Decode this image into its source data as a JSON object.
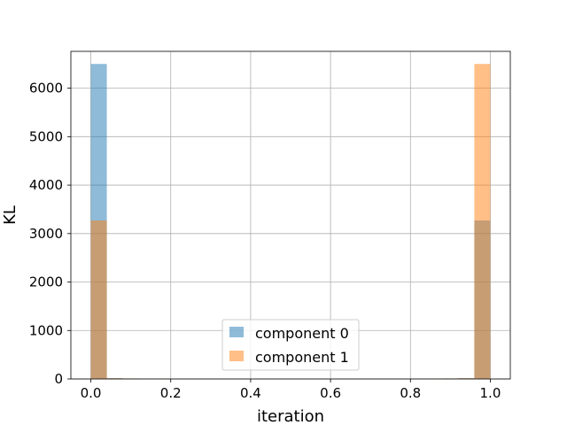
{
  "chart_data": {
    "type": "bar",
    "title": "",
    "xlabel": "iteration",
    "ylabel": "KL",
    "xlim": [
      -0.05,
      1.05
    ],
    "ylim": [
      0,
      6760
    ],
    "grid": true,
    "legend_position": "lower center",
    "x_ticks": [
      {
        "value": 0.0,
        "label": "0.0"
      },
      {
        "value": 0.2,
        "label": "0.2"
      },
      {
        "value": 0.4,
        "label": "0.4"
      },
      {
        "value": 0.6,
        "label": "0.6"
      },
      {
        "value": 0.8,
        "label": "0.8"
      },
      {
        "value": 1.0,
        "label": "1.0"
      }
    ],
    "y_ticks": [
      {
        "value": 0,
        "label": "0"
      },
      {
        "value": 1000,
        "label": "1000"
      },
      {
        "value": 2000,
        "label": "2000"
      },
      {
        "value": 3000,
        "label": "3000"
      },
      {
        "value": 4000,
        "label": "4000"
      },
      {
        "value": 5000,
        "label": "5000"
      },
      {
        "value": 6000,
        "label": "6000"
      }
    ],
    "bin_edges": [
      0.0,
      0.04,
      0.08,
      0.12,
      0.16,
      0.2,
      0.24,
      0.28,
      0.32,
      0.36,
      0.4,
      0.44,
      0.48,
      0.52,
      0.56,
      0.6,
      0.64,
      0.68,
      0.72,
      0.76,
      0.8,
      0.84,
      0.88,
      0.92,
      0.96,
      1.0
    ],
    "series": [
      {
        "name": "component 0",
        "color": "#1f77b4",
        "opacity": 0.5,
        "values": [
          6500,
          15,
          10,
          8,
          5,
          0,
          0,
          0,
          0,
          0,
          0,
          0,
          0,
          0,
          0,
          0,
          0,
          0,
          0,
          0,
          8,
          5,
          10,
          15,
          3270
        ]
      },
      {
        "name": "component 1",
        "color": "#ff7f0e",
        "opacity": 0.5,
        "values": [
          3270,
          15,
          10,
          5,
          8,
          0,
          0,
          0,
          0,
          0,
          0,
          0,
          0,
          0,
          0,
          0,
          0,
          0,
          0,
          0,
          5,
          8,
          10,
          15,
          6500
        ]
      }
    ]
  }
}
